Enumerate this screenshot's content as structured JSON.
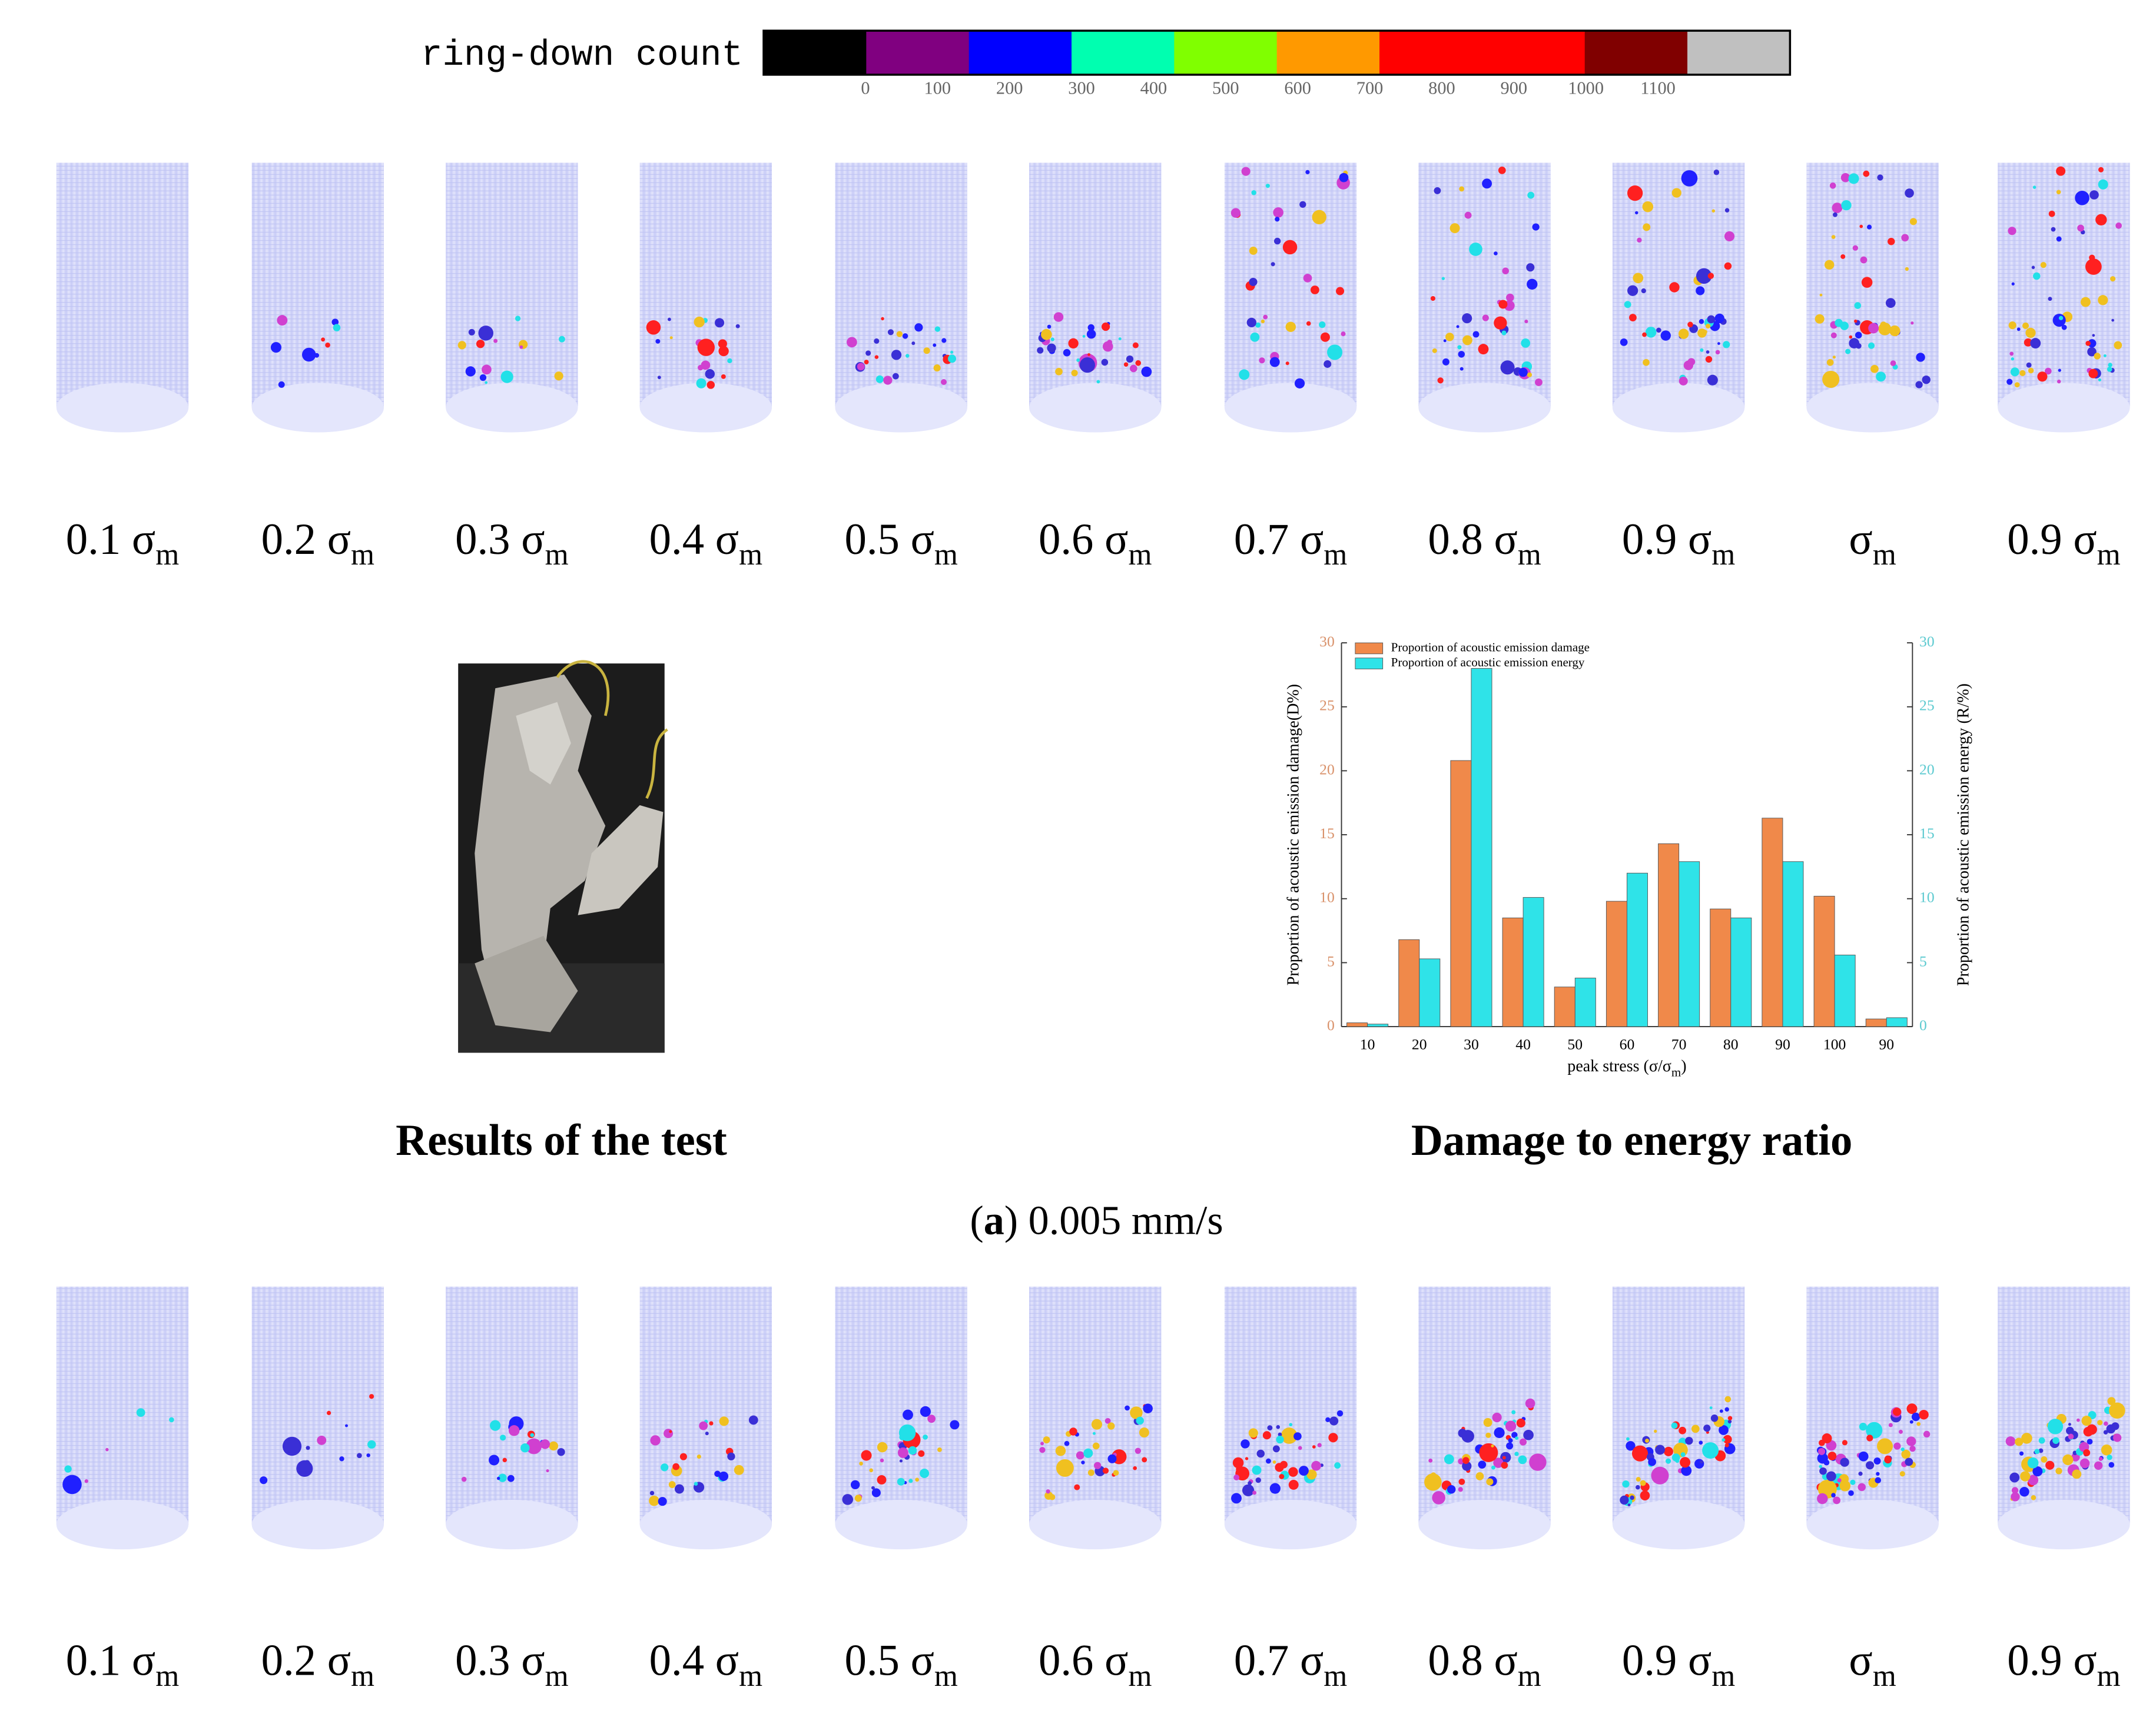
{
  "colorbar": {
    "label": "ring-down count",
    "colors": [
      "#000000",
      "#800080",
      "#0000ff",
      "#00ffb0",
      "#80ff00",
      "#ff9900",
      "#ff0000",
      "#ff0000",
      "#800000",
      "#c0c0c0"
    ],
    "ticks": [
      0,
      100,
      200,
      300,
      400,
      500,
      600,
      700,
      800,
      900,
      1000,
      1100
    ]
  },
  "panels": [
    {
      "labels": [
        {
          "main": "0.1 σ",
          "sub": "m"
        },
        {
          "main": "0.2 σ",
          "sub": "m"
        },
        {
          "main": "0.3 σ",
          "sub": "m"
        },
        {
          "main": "0.4 σ",
          "sub": "m"
        },
        {
          "main": "0.5 σ",
          "sub": "m"
        },
        {
          "main": "0.6 σ",
          "sub": "m"
        },
        {
          "main": "0.7 σ",
          "sub": "m"
        },
        {
          "main": "0.8 σ",
          "sub": "m"
        },
        {
          "main": "0.9 σ",
          "sub": "m"
        },
        {
          "main": "σ",
          "sub": "m"
        },
        {
          "main": "0.9 σ",
          "sub": "m"
        }
      ]
    },
    {
      "labels": [
        {
          "main": "0.1 σ",
          "sub": "m"
        },
        {
          "main": "0.2 σ",
          "sub": "m"
        },
        {
          "main": "0.3 σ",
          "sub": "m"
        },
        {
          "main": "0.4 σ",
          "sub": "m"
        },
        {
          "main": "0.5 σ",
          "sub": "m"
        },
        {
          "main": "0.6 σ",
          "sub": "m"
        },
        {
          "main": "0.7 σ",
          "sub": "m"
        },
        {
          "main": "0.8 σ",
          "sub": "m"
        },
        {
          "main": "0.9 σ",
          "sub": "m"
        },
        {
          "main": "σ",
          "sub": "m"
        },
        {
          "main": "0.9 σ",
          "sub": "m"
        }
      ]
    }
  ],
  "captions": {
    "photo": "Results of the test",
    "chart": "Damage to energy ratio",
    "panel_a": {
      "open": "(",
      "letter": "a",
      "rest": ") 0.005 mm/s"
    }
  },
  "chart_data": {
    "type": "bar",
    "x_label": {
      "main": "peak stress (σ/σ",
      "sub": "m",
      "close": ")"
    },
    "y_label": "Proportion of acoustic emission damage(D%)",
    "y2_label": "Proportion of acoustic emission energy (R/%)",
    "categories": [
      "10",
      "20",
      "30",
      "40",
      "50",
      "60",
      "70",
      "80",
      "90",
      "100",
      "90"
    ],
    "series": [
      {
        "name": "Proportion of acoustic emission damage",
        "color": "#f0894a",
        "values": [
          0.3,
          6.8,
          20.8,
          8.5,
          3.1,
          9.8,
          14.3,
          9.2,
          16.3,
          10.2,
          0.6
        ]
      },
      {
        "name": "Proportion of acoustic emission energy",
        "color": "#2fe3e8",
        "axis": "y2",
        "values": [
          0.2,
          5.3,
          28,
          10.1,
          3.8,
          12,
          12.9,
          8.5,
          12.9,
          5.6,
          0.7
        ]
      }
    ],
    "ylim": [
      0,
      30
    ],
    "yticks": [
      0,
      5,
      10,
      15,
      20,
      25,
      30
    ],
    "y2lim": [
      0,
      30
    ],
    "y2ticks": [
      0,
      5,
      10,
      15,
      20,
      25,
      30
    ],
    "legend": "top-left"
  }
}
